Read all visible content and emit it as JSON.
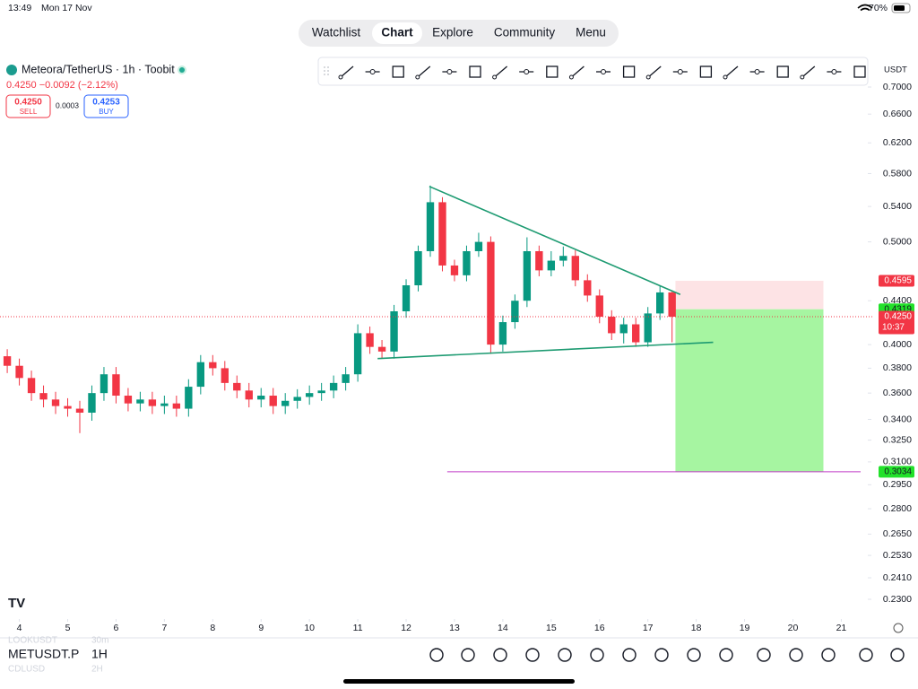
{
  "status_bar": {
    "time": "13:49",
    "date": "Mon 17 Nov",
    "battery": "70%"
  },
  "tabs": [
    "Watchlist",
    "Chart",
    "Explore",
    "Community",
    "Menu"
  ],
  "symbol_info": {
    "title": "Meteora/TetherUS · 1h · Toobit",
    "change": "0.4250 −0.0092 (−2.12%)",
    "sell_price": "0.4250",
    "sell_label": "SELL",
    "spread": "0.0003",
    "buy_price": "0.4253",
    "buy_label": "BUY"
  },
  "currency": "USDT",
  "bottom_bar": {
    "symbol": "METUSDT.P",
    "interval": "1H",
    "prev_symbol": "LOOKUSDT",
    "prev_interval": "30m",
    "next_symbol": "CDLUSD",
    "next_interval": "2H"
  },
  "chart_data": {
    "type": "candlestick",
    "log_scale": true,
    "up_color": "#089981",
    "down_color": "#f23645",
    "xlim": [
      3.6,
      21.4
    ],
    "xticks": [
      4,
      5,
      6,
      7,
      8,
      9,
      10,
      11,
      12,
      13,
      14,
      15,
      16,
      17,
      18,
      19,
      20,
      21
    ],
    "ylim": [
      0.23,
      0.7
    ],
    "yticks": [
      {
        "value": 0.7,
        "label": "0.7000"
      },
      {
        "value": 0.66,
        "label": "0.6600"
      },
      {
        "value": 0.62,
        "label": "0.6200"
      },
      {
        "value": 0.58,
        "label": "0.5800"
      },
      {
        "value": 0.54,
        "label": "0.5400"
      },
      {
        "value": 0.5,
        "label": "0.5000"
      },
      {
        "value": 0.44,
        "label": "0.4400"
      },
      {
        "value": 0.4,
        "label": "0.4000"
      },
      {
        "value": 0.38,
        "label": "0.3800"
      },
      {
        "value": 0.36,
        "label": "0.3600"
      },
      {
        "value": 0.34,
        "label": "0.3400"
      },
      {
        "value": 0.325,
        "label": "0.3250"
      },
      {
        "value": 0.31,
        "label": "0.3100"
      },
      {
        "value": 0.295,
        "label": "0.2950"
      },
      {
        "value": 0.28,
        "label": "0.2800"
      },
      {
        "value": 0.265,
        "label": "0.2650"
      },
      {
        "value": 0.253,
        "label": "0.2530"
      },
      {
        "value": 0.241,
        "label": "0.2410"
      },
      {
        "value": 0.23,
        "label": "0.2300"
      }
    ],
    "candles": {
      "x": [
        3.75,
        4,
        4.25,
        4.5,
        4.75,
        5,
        5.25,
        5.5,
        5.75,
        6,
        6.25,
        6.5,
        6.75,
        7,
        7.25,
        7.5,
        7.75,
        8,
        8.25,
        8.5,
        8.75,
        9,
        9.25,
        9.5,
        9.75,
        10,
        10.25,
        10.5,
        10.75,
        11,
        11.25,
        11.5,
        11.75,
        12,
        12.25,
        12.5,
        12.75,
        13,
        13.25,
        13.5,
        13.75,
        14,
        14.25,
        14.5,
        14.75,
        15,
        15.25,
        15.5,
        15.75,
        16,
        16.25,
        16.5,
        16.75,
        17,
        17.25,
        17.5
      ],
      "open": [
        0.39,
        0.382,
        0.372,
        0.36,
        0.355,
        0.35,
        0.348,
        0.345,
        0.36,
        0.375,
        0.358,
        0.352,
        0.355,
        0.35,
        0.352,
        0.348,
        0.365,
        0.385,
        0.38,
        0.368,
        0.362,
        0.355,
        0.358,
        0.35,
        0.354,
        0.357,
        0.36,
        0.362,
        0.368,
        0.375,
        0.41,
        0.398,
        0.394,
        0.43,
        0.455,
        0.49,
        0.545,
        0.475,
        0.465,
        0.49,
        0.5,
        0.4,
        0.42,
        0.44,
        0.49,
        0.47,
        0.48,
        0.485,
        0.46,
        0.445,
        0.425,
        0.41,
        0.418,
        0.402,
        0.428,
        0.448
      ],
      "high": [
        0.396,
        0.388,
        0.378,
        0.366,
        0.361,
        0.356,
        0.354,
        0.366,
        0.381,
        0.381,
        0.364,
        0.361,
        0.361,
        0.358,
        0.358,
        0.371,
        0.391,
        0.391,
        0.386,
        0.374,
        0.368,
        0.364,
        0.364,
        0.36,
        0.363,
        0.366,
        0.368,
        0.374,
        0.381,
        0.418,
        0.416,
        0.404,
        0.436,
        0.461,
        0.496,
        0.565,
        0.551,
        0.481,
        0.496,
        0.51,
        0.506,
        0.426,
        0.446,
        0.505,
        0.496,
        0.49,
        0.495,
        0.491,
        0.466,
        0.451,
        0.431,
        0.424,
        0.424,
        0.434,
        0.455,
        0.45
      ],
      "low": [
        0.376,
        0.366,
        0.354,
        0.349,
        0.344,
        0.342,
        0.33,
        0.339,
        0.354,
        0.352,
        0.346,
        0.346,
        0.344,
        0.344,
        0.342,
        0.342,
        0.359,
        0.374,
        0.362,
        0.356,
        0.349,
        0.349,
        0.344,
        0.344,
        0.348,
        0.351,
        0.354,
        0.356,
        0.362,
        0.369,
        0.392,
        0.388,
        0.388,
        0.424,
        0.449,
        0.484,
        0.469,
        0.459,
        0.459,
        0.484,
        0.392,
        0.394,
        0.414,
        0.434,
        0.464,
        0.464,
        0.474,
        0.454,
        0.439,
        0.419,
        0.404,
        0.401,
        0.398,
        0.398,
        0.422,
        0.402
      ],
      "close": [
        0.382,
        0.372,
        0.36,
        0.355,
        0.35,
        0.348,
        0.345,
        0.36,
        0.375,
        0.358,
        0.352,
        0.355,
        0.35,
        0.352,
        0.348,
        0.365,
        0.385,
        0.38,
        0.368,
        0.362,
        0.355,
        0.358,
        0.35,
        0.354,
        0.357,
        0.36,
        0.362,
        0.368,
        0.375,
        0.41,
        0.398,
        0.394,
        0.43,
        0.455,
        0.49,
        0.545,
        0.475,
        0.465,
        0.49,
        0.5,
        0.4,
        0.42,
        0.44,
        0.49,
        0.47,
        0.48,
        0.485,
        0.46,
        0.445,
        0.425,
        0.41,
        0.418,
        0.402,
        0.428,
        0.448,
        0.425
      ]
    },
    "trendlines": [
      {
        "color": "#1e9b72",
        "x": [
          12.48,
          17.67
        ],
        "y": [
          0.564,
          0.446
        ]
      },
      {
        "color": "#1e9b72",
        "x": [
          11.41,
          18.35
        ],
        "y": [
          0.388,
          0.402
        ]
      }
    ],
    "position": {
      "x": [
        17.57,
        20.63
      ],
      "stop": 0.4595,
      "entry": 0.4319,
      "target": 0.3034,
      "stop_color": "#fde3e5",
      "target_color": "#a6f5a1"
    },
    "target_line": {
      "x": [
        12.85,
        21.4
      ],
      "value": 0.3034,
      "color": "#c13cc8"
    },
    "price_tags": [
      {
        "value": 0.4595,
        "label": "0.4595",
        "color": "#f23645"
      },
      {
        "value": 0.4319,
        "label": "0.4319",
        "color": "#22e12a"
      },
      {
        "value": 0.425,
        "label": "0.4250",
        "color": "#f23645"
      },
      {
        "value": 0.3034,
        "label": "0.3034",
        "color": "#22e12a"
      }
    ],
    "countdown": "10:37"
  }
}
